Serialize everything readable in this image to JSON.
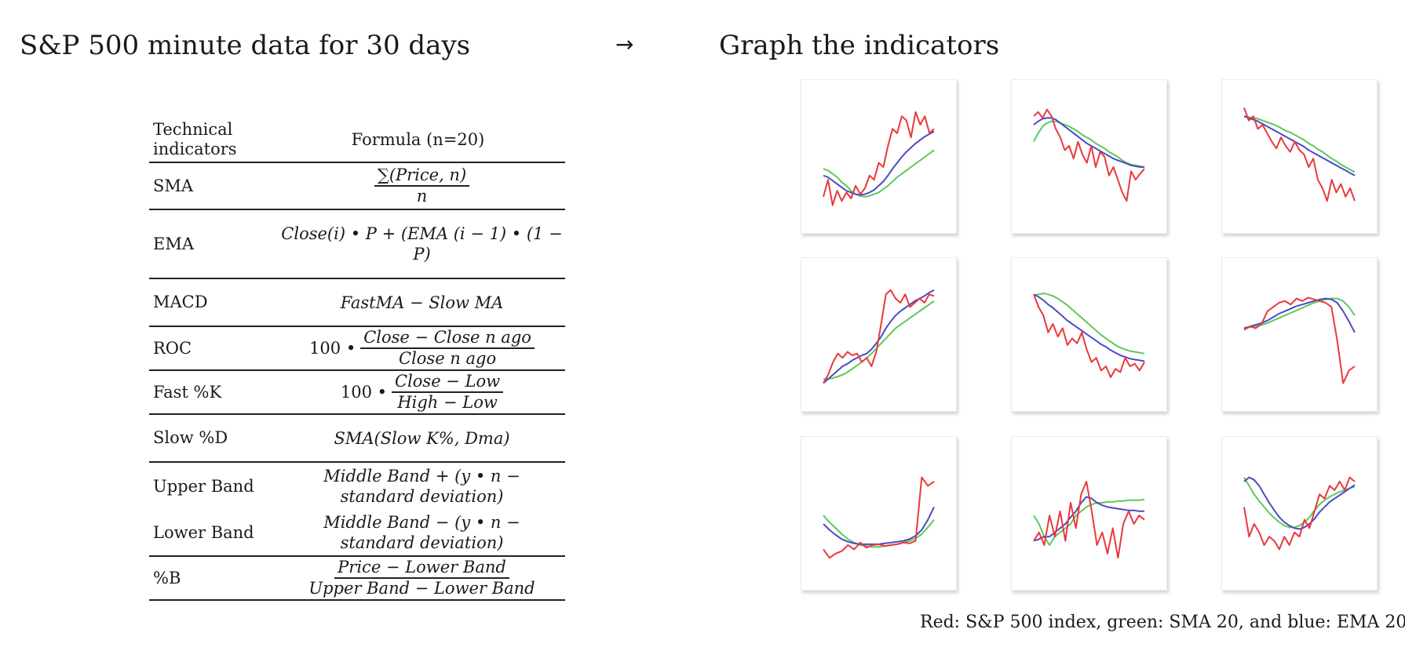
{
  "headings": {
    "left_title": "S&P 500 minute data for 30 days",
    "arrow": "→",
    "right_title": "Graph the indicators"
  },
  "table": {
    "header": {
      "name": "Technical indicators",
      "formula": "Formula (n=20)"
    },
    "rows": [
      {
        "name": "SMA",
        "num": "∑(Price, n)",
        "den": "n"
      },
      {
        "name": "EMA",
        "formula": "Close(i) • P + (EMA (i − 1) • (1 − P)"
      },
      {
        "name": "MACD",
        "formula": "FastMA − Slow MA"
      },
      {
        "name": "ROC",
        "prefix": "100 •",
        "num": "Close − Close n ago",
        "den": "Close n ago"
      },
      {
        "name": "Fast %K",
        "prefix": "100 •",
        "num": "Close − Low",
        "den": "High − Low"
      },
      {
        "name": "Slow %D",
        "formula": "SMA(Slow K%, Dma)"
      },
      {
        "name": "Upper Band",
        "line1": "Middle Band + (y • n −",
        "line2": "standard deviation)"
      },
      {
        "name": "Lower Band",
        "line1": "Middle Band − (y • n −",
        "line2": "standard deviation)"
      },
      {
        "name": "%B",
        "num": "Price − Lower Band",
        "den": "Upper Band − Lower Band"
      }
    ]
  },
  "caption": "Red: S&P 500 index, green: SMA 20, and blue: EMA 20",
  "colors": {
    "index": "#e8393b",
    "sma": "#5cc95a",
    "ema": "#4b4bc4"
  },
  "chart_data": [
    {
      "type": "line",
      "series": [
        {
          "values": [
            0.35,
            0.55,
            0.25,
            0.42,
            0.3,
            0.4,
            0.33,
            0.48,
            0.38,
            0.45,
            0.6,
            0.55,
            0.75,
            0.7,
            0.95,
            1.15,
            1.1,
            1.3,
            1.25,
            1.05,
            1.35,
            1.2,
            1.3,
            1.1,
            1.15
          ]
        },
        {
          "values": [
            0.68,
            0.66,
            0.62,
            0.58,
            0.52,
            0.48,
            0.42,
            0.38,
            0.36,
            0.35,
            0.36,
            0.38,
            0.4,
            0.44,
            0.48,
            0.53,
            0.58,
            0.62,
            0.66,
            0.7,
            0.74,
            0.78,
            0.82,
            0.86,
            0.9
          ]
        },
        {
          "values": [
            0.6,
            0.58,
            0.54,
            0.5,
            0.46,
            0.42,
            0.4,
            0.38,
            0.37,
            0.38,
            0.4,
            0.43,
            0.48,
            0.53,
            0.6,
            0.68,
            0.75,
            0.82,
            0.88,
            0.93,
            0.98,
            1.02,
            1.06,
            1.09,
            1.12
          ]
        }
      ]
    },
    {
      "type": "line",
      "series": [
        {
          "values": [
            1.3,
            1.35,
            1.28,
            1.38,
            1.3,
            1.15,
            1.05,
            0.9,
            0.95,
            0.8,
            1.0,
            0.85,
            0.75,
            0.95,
            0.7,
            0.88,
            0.82,
            0.6,
            0.7,
            0.55,
            0.4,
            0.3,
            0.65,
            0.55,
            0.62,
            0.68
          ]
        },
        {
          "values": [
            1.0,
            1.1,
            1.18,
            1.22,
            1.24,
            1.24,
            1.22,
            1.2,
            1.18,
            1.15,
            1.12,
            1.08,
            1.05,
            1.02,
            0.98,
            0.95,
            0.92,
            0.88,
            0.85,
            0.82,
            0.78,
            0.75,
            0.73,
            0.72,
            0.71,
            0.7
          ]
        },
        {
          "values": [
            1.2,
            1.24,
            1.27,
            1.28,
            1.28,
            1.26,
            1.22,
            1.18,
            1.14,
            1.1,
            1.06,
            1.02,
            0.98,
            0.95,
            0.92,
            0.89,
            0.86,
            0.83,
            0.8,
            0.78,
            0.76,
            0.74,
            0.72,
            0.71,
            0.7,
            0.7
          ]
        }
      ]
    },
    {
      "type": "line",
      "series": [
        {
          "values": [
            1.4,
            1.25,
            1.3,
            1.15,
            1.2,
            1.1,
            1.0,
            0.92,
            1.05,
            0.95,
            0.88,
            1.0,
            0.9,
            0.85,
            0.7,
            0.8,
            0.55,
            0.45,
            0.3,
            0.55,
            0.4,
            0.5,
            0.35,
            0.45,
            0.3
          ]
        },
        {
          "values": [
            1.3,
            1.29,
            1.28,
            1.27,
            1.25,
            1.23,
            1.21,
            1.19,
            1.16,
            1.13,
            1.11,
            1.08,
            1.05,
            1.02,
            0.98,
            0.95,
            0.91,
            0.88,
            0.84,
            0.8,
            0.77,
            0.73,
            0.7,
            0.67,
            0.64
          ]
        },
        {
          "values": [
            1.3,
            1.28,
            1.26,
            1.24,
            1.21,
            1.18,
            1.15,
            1.12,
            1.09,
            1.06,
            1.03,
            1.0,
            0.97,
            0.94,
            0.9,
            0.87,
            0.84,
            0.81,
            0.78,
            0.75,
            0.72,
            0.69,
            0.66,
            0.63,
            0.6
          ]
        }
      ]
    },
    {
      "type": "line",
      "series": [
        {
          "values": [
            0.25,
            0.35,
            0.5,
            0.6,
            0.55,
            0.62,
            0.58,
            0.6,
            0.5,
            0.55,
            0.45,
            0.62,
            0.95,
            1.3,
            1.35,
            1.25,
            1.2,
            1.3,
            1.15,
            1.2,
            1.25,
            1.2,
            1.3,
            1.28
          ]
        },
        {
          "values": [
            0.3,
            0.3,
            0.31,
            0.33,
            0.35,
            0.38,
            0.42,
            0.46,
            0.5,
            0.55,
            0.6,
            0.66,
            0.72,
            0.78,
            0.84,
            0.9,
            0.94,
            0.98,
            1.02,
            1.06,
            1.1,
            1.14,
            1.18,
            1.22
          ]
        },
        {
          "values": [
            0.25,
            0.3,
            0.35,
            0.4,
            0.45,
            0.48,
            0.52,
            0.55,
            0.58,
            0.6,
            0.65,
            0.72,
            0.8,
            0.9,
            0.98,
            1.05,
            1.1,
            1.14,
            1.18,
            1.22,
            1.25,
            1.28,
            1.32,
            1.35
          ]
        }
      ]
    },
    {
      "type": "line",
      "series": [
        {
          "values": [
            1.3,
            1.15,
            1.05,
            0.85,
            0.95,
            0.8,
            0.9,
            0.7,
            0.78,
            0.72,
            0.85,
            0.65,
            0.5,
            0.55,
            0.4,
            0.45,
            0.32,
            0.42,
            0.38,
            0.55,
            0.45,
            0.48,
            0.4,
            0.5
          ]
        },
        {
          "values": [
            1.28,
            1.3,
            1.31,
            1.3,
            1.28,
            1.25,
            1.21,
            1.17,
            1.12,
            1.07,
            1.02,
            0.97,
            0.92,
            0.87,
            0.82,
            0.78,
            0.74,
            0.7,
            0.67,
            0.65,
            0.63,
            0.62,
            0.61,
            0.6
          ]
        },
        {
          "values": [
            1.3,
            1.27,
            1.23,
            1.18,
            1.14,
            1.09,
            1.04,
            0.99,
            0.95,
            0.91,
            0.87,
            0.83,
            0.79,
            0.75,
            0.71,
            0.68,
            0.64,
            0.61,
            0.58,
            0.56,
            0.54,
            0.53,
            0.52,
            0.51
          ]
        }
      ]
    },
    {
      "type": "line",
      "series": [
        {
          "values": [
            0.88,
            0.92,
            0.9,
            0.95,
            1.1,
            1.15,
            1.2,
            1.22,
            1.18,
            1.25,
            1.22,
            1.26,
            1.24,
            1.22,
            1.2,
            1.15,
            0.75,
            0.25,
            0.4,
            0.45
          ]
        },
        {
          "values": [
            0.9,
            0.91,
            0.92,
            0.94,
            0.96,
            0.99,
            1.02,
            1.05,
            1.08,
            1.11,
            1.14,
            1.17,
            1.2,
            1.22,
            1.24,
            1.25,
            1.25,
            1.22,
            1.15,
            1.05
          ]
        },
        {
          "values": [
            0.9,
            0.92,
            0.94,
            0.96,
            0.99,
            1.03,
            1.07,
            1.1,
            1.13,
            1.16,
            1.18,
            1.2,
            1.22,
            1.24,
            1.25,
            1.24,
            1.2,
            1.1,
            0.98,
            0.85
          ]
        }
      ]
    },
    {
      "type": "line",
      "series": [
        {
          "values": [
            0.4,
            0.3,
            0.35,
            0.38,
            0.45,
            0.4,
            0.48,
            0.42,
            0.45,
            0.46,
            0.44,
            0.45,
            0.46,
            0.48,
            0.47,
            0.5,
            1.25,
            1.15,
            1.2
          ]
        },
        {
          "values": [
            0.8,
            0.72,
            0.65,
            0.58,
            0.52,
            0.48,
            0.45,
            0.44,
            0.43,
            0.43,
            0.44,
            0.45,
            0.46,
            0.48,
            0.5,
            0.53,
            0.58,
            0.66,
            0.75
          ]
        },
        {
          "values": [
            0.7,
            0.63,
            0.57,
            0.52,
            0.49,
            0.47,
            0.46,
            0.46,
            0.46,
            0.46,
            0.47,
            0.48,
            0.49,
            0.5,
            0.52,
            0.56,
            0.63,
            0.75,
            0.9
          ]
        }
      ]
    },
    {
      "type": "line",
      "series": [
        {
          "values": [
            0.5,
            0.6,
            0.45,
            0.8,
            0.55,
            0.85,
            0.5,
            0.95,
            0.65,
            1.05,
            1.2,
            0.85,
            0.45,
            0.6,
            0.35,
            0.65,
            0.3,
            0.7,
            0.85,
            0.7,
            0.8,
            0.75
          ]
        },
        {
          "values": [
            0.8,
            0.7,
            0.55,
            0.45,
            0.55,
            0.6,
            0.65,
            0.7,
            0.8,
            0.85,
            0.9,
            0.93,
            0.95,
            0.95,
            0.96,
            0.96,
            0.97,
            0.97,
            0.98,
            0.98,
            0.98,
            0.99
          ]
        },
        {
          "values": [
            0.5,
            0.52,
            0.55,
            0.55,
            0.6,
            0.65,
            0.7,
            0.78,
            0.85,
            0.95,
            1.02,
            1.0,
            0.95,
            0.92,
            0.9,
            0.89,
            0.88,
            0.87,
            0.86,
            0.86,
            0.85,
            0.85
          ]
        }
      ]
    },
    {
      "type": "line",
      "series": [
        {
          "values": [
            0.9,
            0.55,
            0.7,
            0.6,
            0.45,
            0.55,
            0.5,
            0.4,
            0.55,
            0.45,
            0.6,
            0.55,
            0.75,
            0.65,
            0.85,
            1.05,
            1.0,
            1.15,
            1.1,
            1.2,
            1.1,
            1.25,
            1.2
          ]
        },
        {
          "values": [
            1.25,
            1.15,
            1.05,
            0.97,
            0.9,
            0.83,
            0.77,
            0.72,
            0.68,
            0.66,
            0.66,
            0.68,
            0.72,
            0.78,
            0.86,
            0.93,
            0.98,
            1.02,
            1.05,
            1.08,
            1.1,
            1.12,
            1.14
          ]
        },
        {
          "values": [
            1.2,
            1.25,
            1.22,
            1.15,
            1.05,
            0.95,
            0.86,
            0.78,
            0.72,
            0.68,
            0.65,
            0.64,
            0.66,
            0.7,
            0.76,
            0.84,
            0.9,
            0.96,
            1.0,
            1.04,
            1.08,
            1.12,
            1.16
          ]
        }
      ]
    }
  ]
}
